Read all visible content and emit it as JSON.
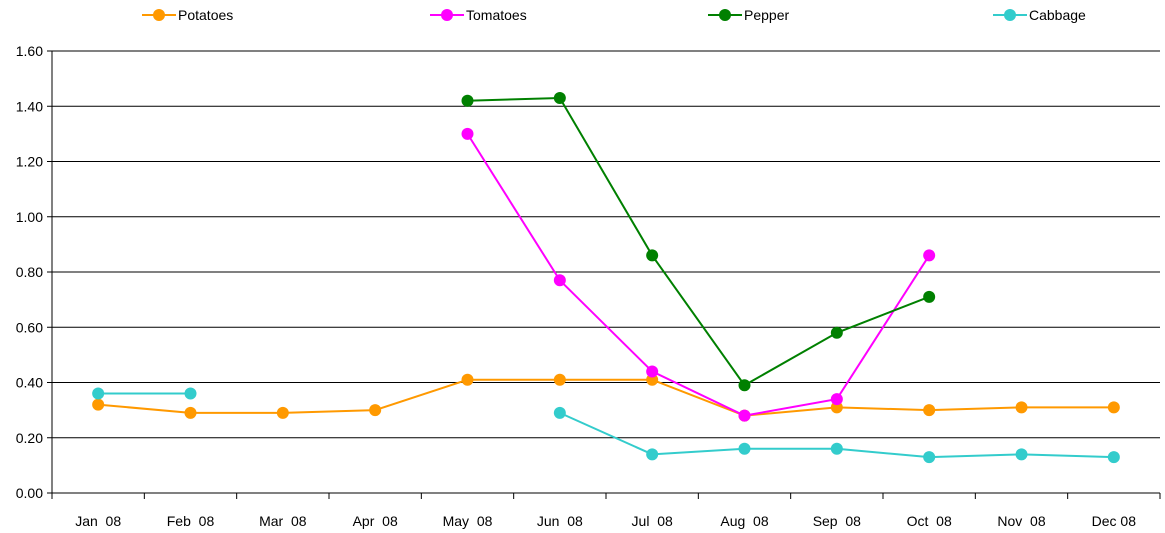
{
  "chart_data": {
    "type": "line",
    "title": "",
    "xlabel": "",
    "ylabel": "",
    "categories": [
      "Jan  08",
      "Feb  08",
      "Mar  08",
      "Apr  08",
      "May  08",
      "Jun  08",
      "Jul  08",
      "Aug  08",
      "Sep  08",
      "Oct  08",
      "Nov  08",
      "Dec 08"
    ],
    "ylim": [
      0,
      1.6
    ],
    "yticks": [
      "0.00",
      "0.20",
      "0.40",
      "0.60",
      "0.80",
      "1.00",
      "1.20",
      "1.40",
      "1.60"
    ],
    "grid": true,
    "legend_position": "top",
    "series": [
      {
        "name": "Potatoes",
        "color": "#ff9900",
        "values": [
          0.32,
          0.29,
          0.29,
          0.3,
          0.41,
          0.41,
          0.41,
          0.28,
          0.31,
          0.3,
          0.31,
          0.31
        ]
      },
      {
        "name": "Tomatoes",
        "color": "#ff00ff",
        "values": [
          null,
          null,
          null,
          null,
          1.3,
          0.77,
          0.44,
          0.28,
          0.34,
          0.86,
          null,
          null
        ]
      },
      {
        "name": "Pepper",
        "color": "#008000",
        "values": [
          null,
          null,
          null,
          null,
          1.42,
          1.43,
          0.86,
          0.39,
          0.58,
          0.71,
          null,
          null
        ]
      },
      {
        "name": "Cabbage",
        "color": "#33cccc",
        "values": [
          0.36,
          0.36,
          null,
          null,
          null,
          0.29,
          0.14,
          0.16,
          0.16,
          0.13,
          0.14,
          0.13
        ]
      }
    ]
  }
}
